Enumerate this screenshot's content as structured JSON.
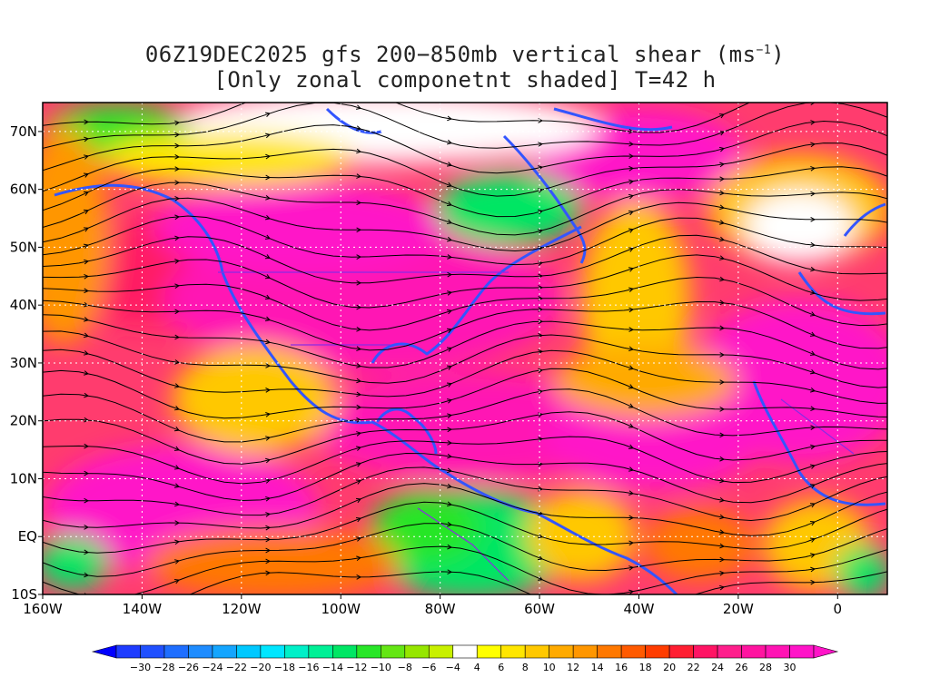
{
  "title": {
    "line1_prefix": "06Z19DEC2025 gfs 200−850mb vertical shear (ms",
    "line1_sup": "−1",
    "line1_suffix": ")",
    "line2": "[Only zonal componetnt shaded] T=42 h"
  },
  "map": {
    "lon_range": [
      -160,
      10
    ],
    "lat_range": [
      -10,
      75
    ],
    "lat_labels": [
      {
        "lat": 70,
        "text": "70N"
      },
      {
        "lat": 60,
        "text": "60N"
      },
      {
        "lat": 50,
        "text": "50N"
      },
      {
        "lat": 40,
        "text": "40N"
      },
      {
        "lat": 30,
        "text": "30N"
      },
      {
        "lat": 20,
        "text": "20N"
      },
      {
        "lat": 10,
        "text": "10N"
      },
      {
        "lat": 0,
        "text": "EQ"
      },
      {
        "lat": -10,
        "text": "10S"
      }
    ],
    "lon_labels": [
      {
        "lon": -160,
        "text": "160W"
      },
      {
        "lon": -140,
        "text": "140W"
      },
      {
        "lon": -120,
        "text": "120W"
      },
      {
        "lon": -100,
        "text": "100W"
      },
      {
        "lon": -80,
        "text": "80W"
      },
      {
        "lon": -60,
        "text": "60W"
      },
      {
        "lon": -40,
        "text": "40W"
      },
      {
        "lon": -20,
        "text": "20W"
      },
      {
        "lon": 0,
        "text": "0"
      }
    ],
    "gridlines": "dotted",
    "coastline_color": "#3355ff",
    "border_color": "#8a2be2",
    "streamline_color": "#000000"
  },
  "colorbar": {
    "labels": [
      "-30",
      "-28",
      "-26",
      "-24",
      "-22",
      "-20",
      "-18",
      "-16",
      "-14",
      "-12",
      "-10",
      "-8",
      "-6",
      "-4",
      "4",
      "6",
      "8",
      "10",
      "12",
      "14",
      "16",
      "18",
      "20",
      "22",
      "24",
      "26",
      "28",
      "30"
    ],
    "colors": [
      "#1e3cff",
      "#2050ff",
      "#1e6eff",
      "#1e8cff",
      "#14a5ff",
      "#00c8ff",
      "#00e6ff",
      "#00f0c8",
      "#00f096",
      "#00e664",
      "#28e628",
      "#64e614",
      "#96e600",
      "#c8f000",
      "#ffffff",
      "#ffff00",
      "#ffe600",
      "#ffc800",
      "#ffaa00",
      "#ff9600",
      "#ff7800",
      "#ff5a00",
      "#ff3c00",
      "#ff1e32",
      "#ff1464",
      "#ff1e8c",
      "#ff14a0",
      "#ff14b4",
      "#ff14c8"
    ],
    "min_color": "#0000ff",
    "max_color": "#ff14c8"
  }
}
